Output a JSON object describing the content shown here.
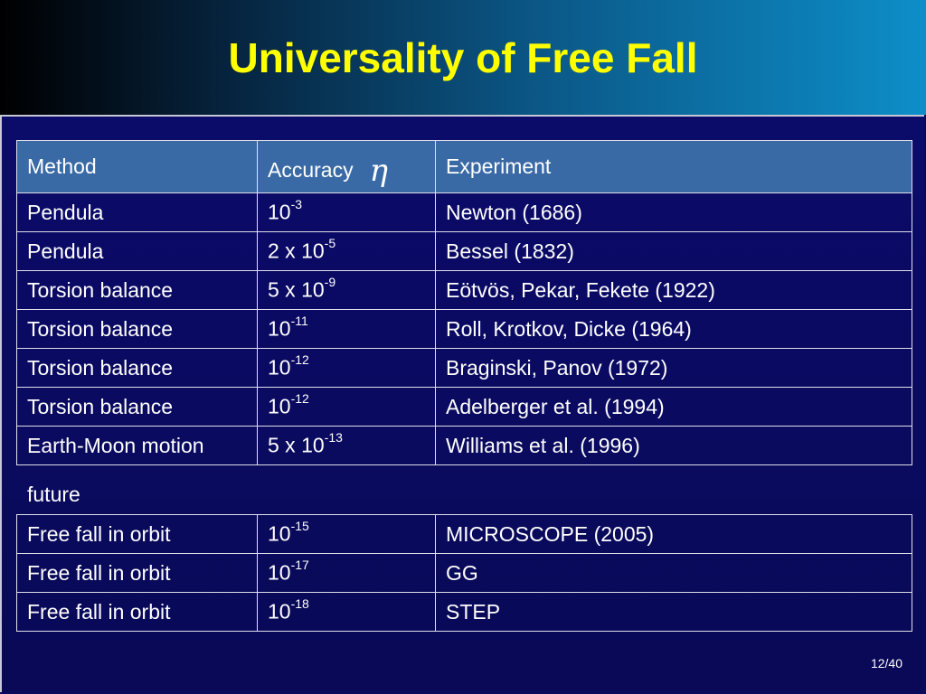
{
  "title": "Universality of Free Fall",
  "table": {
    "headers": {
      "method": "Method",
      "accuracy": "Accuracy",
      "accuracy_symbol": "η",
      "experiment": "Experiment"
    },
    "rows": [
      {
        "method": "Pendula",
        "acc_base": "10",
        "acc_exp": "-3",
        "experiment": "Newton (1686)"
      },
      {
        "method": "Pendula",
        "acc_base": "2 x 10",
        "acc_exp": "-5",
        "experiment": "Bessel (1832)"
      },
      {
        "method": "Torsion balance",
        "acc_base": "5 x 10",
        "acc_exp": "-9",
        "experiment": "Eötvös, Pekar, Fekete (1922)"
      },
      {
        "method": "Torsion balance",
        "acc_base": "10",
        "acc_exp": "-11",
        "experiment": "Roll, Krotkov, Dicke (1964)"
      },
      {
        "method": "Torsion balance",
        "acc_base": "10",
        "acc_exp": "-12",
        "experiment": "Braginski, Panov (1972)"
      },
      {
        "method": "Torsion balance",
        "acc_base": "10",
        "acc_exp": "-12",
        "experiment": "Adelberger et al. (1994)"
      },
      {
        "method": "Earth-Moon motion",
        "acc_base": "5 x 10",
        "acc_exp": "-13",
        "experiment": "Williams et al. (1996)"
      }
    ],
    "future_label": "future",
    "future_rows": [
      {
        "method": "Free fall in orbit",
        "acc_base": "10",
        "acc_exp": "-15",
        "experiment": "MICROSCOPE (2005)"
      },
      {
        "method": "Free fall in orbit",
        "acc_base": "10",
        "acc_exp": "-17",
        "experiment": "GG"
      },
      {
        "method": "Free fall in orbit",
        "acc_base": "10",
        "acc_exp": "-18",
        "experiment": "STEP"
      }
    ]
  },
  "page_number": "12/40",
  "colors": {
    "title": "#ffff00",
    "background": "#0a0a5c",
    "header_row": "#3a6aa6"
  }
}
